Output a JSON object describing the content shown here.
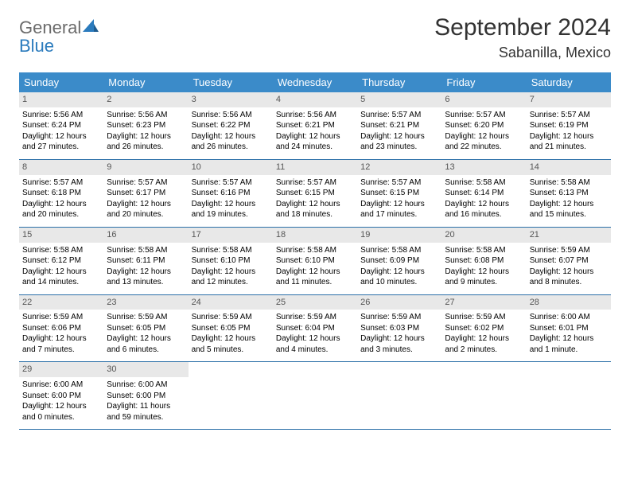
{
  "brand": {
    "part1": "General",
    "part2": "Blue"
  },
  "title": "September 2024",
  "location": "Sabanilla, Mexico",
  "colors": {
    "header_bg": "#3b8bc9",
    "header_text": "#ffffff",
    "daynum_bg": "#e8e8e8",
    "daynum_text": "#555555",
    "rule": "#2b6fa8",
    "brand_gray": "#6b6b6b",
    "brand_blue": "#2b7bbd"
  },
  "weekdays": [
    "Sunday",
    "Monday",
    "Tuesday",
    "Wednesday",
    "Thursday",
    "Friday",
    "Saturday"
  ],
  "days": [
    {
      "n": "1",
      "sunrise": "5:56 AM",
      "sunset": "6:24 PM",
      "dl1": "Daylight: 12 hours",
      "dl2": "and 27 minutes."
    },
    {
      "n": "2",
      "sunrise": "5:56 AM",
      "sunset": "6:23 PM",
      "dl1": "Daylight: 12 hours",
      "dl2": "and 26 minutes."
    },
    {
      "n": "3",
      "sunrise": "5:56 AM",
      "sunset": "6:22 PM",
      "dl1": "Daylight: 12 hours",
      "dl2": "and 26 minutes."
    },
    {
      "n": "4",
      "sunrise": "5:56 AM",
      "sunset": "6:21 PM",
      "dl1": "Daylight: 12 hours",
      "dl2": "and 24 minutes."
    },
    {
      "n": "5",
      "sunrise": "5:57 AM",
      "sunset": "6:21 PM",
      "dl1": "Daylight: 12 hours",
      "dl2": "and 23 minutes."
    },
    {
      "n": "6",
      "sunrise": "5:57 AM",
      "sunset": "6:20 PM",
      "dl1": "Daylight: 12 hours",
      "dl2": "and 22 minutes."
    },
    {
      "n": "7",
      "sunrise": "5:57 AM",
      "sunset": "6:19 PM",
      "dl1": "Daylight: 12 hours",
      "dl2": "and 21 minutes."
    },
    {
      "n": "8",
      "sunrise": "5:57 AM",
      "sunset": "6:18 PM",
      "dl1": "Daylight: 12 hours",
      "dl2": "and 20 minutes."
    },
    {
      "n": "9",
      "sunrise": "5:57 AM",
      "sunset": "6:17 PM",
      "dl1": "Daylight: 12 hours",
      "dl2": "and 20 minutes."
    },
    {
      "n": "10",
      "sunrise": "5:57 AM",
      "sunset": "6:16 PM",
      "dl1": "Daylight: 12 hours",
      "dl2": "and 19 minutes."
    },
    {
      "n": "11",
      "sunrise": "5:57 AM",
      "sunset": "6:15 PM",
      "dl1": "Daylight: 12 hours",
      "dl2": "and 18 minutes."
    },
    {
      "n": "12",
      "sunrise": "5:57 AM",
      "sunset": "6:15 PM",
      "dl1": "Daylight: 12 hours",
      "dl2": "and 17 minutes."
    },
    {
      "n": "13",
      "sunrise": "5:58 AM",
      "sunset": "6:14 PM",
      "dl1": "Daylight: 12 hours",
      "dl2": "and 16 minutes."
    },
    {
      "n": "14",
      "sunrise": "5:58 AM",
      "sunset": "6:13 PM",
      "dl1": "Daylight: 12 hours",
      "dl2": "and 15 minutes."
    },
    {
      "n": "15",
      "sunrise": "5:58 AM",
      "sunset": "6:12 PM",
      "dl1": "Daylight: 12 hours",
      "dl2": "and 14 minutes."
    },
    {
      "n": "16",
      "sunrise": "5:58 AM",
      "sunset": "6:11 PM",
      "dl1": "Daylight: 12 hours",
      "dl2": "and 13 minutes."
    },
    {
      "n": "17",
      "sunrise": "5:58 AM",
      "sunset": "6:10 PM",
      "dl1": "Daylight: 12 hours",
      "dl2": "and 12 minutes."
    },
    {
      "n": "18",
      "sunrise": "5:58 AM",
      "sunset": "6:10 PM",
      "dl1": "Daylight: 12 hours",
      "dl2": "and 11 minutes."
    },
    {
      "n": "19",
      "sunrise": "5:58 AM",
      "sunset": "6:09 PM",
      "dl1": "Daylight: 12 hours",
      "dl2": "and 10 minutes."
    },
    {
      "n": "20",
      "sunrise": "5:58 AM",
      "sunset": "6:08 PM",
      "dl1": "Daylight: 12 hours",
      "dl2": "and 9 minutes."
    },
    {
      "n": "21",
      "sunrise": "5:59 AM",
      "sunset": "6:07 PM",
      "dl1": "Daylight: 12 hours",
      "dl2": "and 8 minutes."
    },
    {
      "n": "22",
      "sunrise": "5:59 AM",
      "sunset": "6:06 PM",
      "dl1": "Daylight: 12 hours",
      "dl2": "and 7 minutes."
    },
    {
      "n": "23",
      "sunrise": "5:59 AM",
      "sunset": "6:05 PM",
      "dl1": "Daylight: 12 hours",
      "dl2": "and 6 minutes."
    },
    {
      "n": "24",
      "sunrise": "5:59 AM",
      "sunset": "6:05 PM",
      "dl1": "Daylight: 12 hours",
      "dl2": "and 5 minutes."
    },
    {
      "n": "25",
      "sunrise": "5:59 AM",
      "sunset": "6:04 PM",
      "dl1": "Daylight: 12 hours",
      "dl2": "and 4 minutes."
    },
    {
      "n": "26",
      "sunrise": "5:59 AM",
      "sunset": "6:03 PM",
      "dl1": "Daylight: 12 hours",
      "dl2": "and 3 minutes."
    },
    {
      "n": "27",
      "sunrise": "5:59 AM",
      "sunset": "6:02 PM",
      "dl1": "Daylight: 12 hours",
      "dl2": "and 2 minutes."
    },
    {
      "n": "28",
      "sunrise": "6:00 AM",
      "sunset": "6:01 PM",
      "dl1": "Daylight: 12 hours",
      "dl2": "and 1 minute."
    },
    {
      "n": "29",
      "sunrise": "6:00 AM",
      "sunset": "6:00 PM",
      "dl1": "Daylight: 12 hours",
      "dl2": "and 0 minutes."
    },
    {
      "n": "30",
      "sunrise": "6:00 AM",
      "sunset": "6:00 PM",
      "dl1": "Daylight: 11 hours",
      "dl2": "and 59 minutes."
    }
  ],
  "layout": {
    "columns": 7,
    "rows": 5,
    "start_offset": 0,
    "trailing_blanks": 5
  }
}
